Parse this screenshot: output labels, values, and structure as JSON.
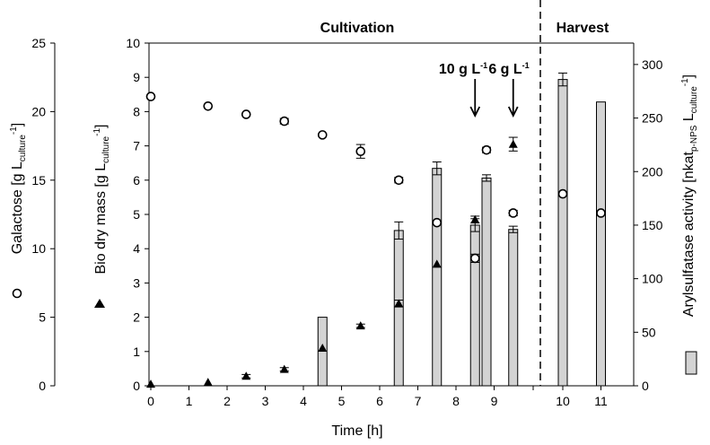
{
  "chart_data": {
    "type": "bar",
    "section_labels": {
      "cultivation": "Cultivation",
      "harvest": "Harvest"
    },
    "xlabel": "Time [h]",
    "x_ticks": [
      "0",
      "1",
      "2",
      "3",
      "4",
      "5",
      "6",
      "7",
      "8",
      "9",
      "10",
      "11"
    ],
    "xlim": [
      0,
      12.3
    ],
    "axes": {
      "galactose": {
        "label_main": "Galactose [g L",
        "label_sub": "culture",
        "label_sup": "-1",
        "label_close": "]",
        "ylim": [
          0,
          25
        ],
        "ticks": [
          0,
          5,
          10,
          15,
          20,
          25
        ]
      },
      "biomass": {
        "label_main": "Bio dry mass [g L",
        "label_sub": "culture",
        "label_sup": "-1",
        "label_close": "]",
        "ylim": [
          0,
          10
        ],
        "ticks": [
          0,
          1,
          2,
          3,
          4,
          5,
          6,
          7,
          8,
          9,
          10
        ]
      },
      "arylsulfatase": {
        "label_main": "Arylsulfatase activity [nkat",
        "label_sub": "p-NPS",
        "label_mid": " L",
        "label_sub2": "culture",
        "label_sup": "-1",
        "label_close": "]",
        "ylim": [
          0,
          320
        ],
        "ticks": [
          0,
          50,
          100,
          150,
          200,
          250,
          300
        ]
      }
    },
    "series": [
      {
        "name": "Galactose",
        "axis": "galactose",
        "marker": "open-circle",
        "points": [
          {
            "x": 0,
            "y": 21.1,
            "err": 0
          },
          {
            "x": 1.5,
            "y": 20.4,
            "err": 0
          },
          {
            "x": 2.5,
            "y": 19.8,
            "err": 0
          },
          {
            "x": 3.5,
            "y": 19.3,
            "err": 0.2
          },
          {
            "x": 4.5,
            "y": 18.3,
            "err": 0
          },
          {
            "x": 5.5,
            "y": 17.1,
            "err": 0.5
          },
          {
            "x": 6.5,
            "y": 15.0,
            "err": 0.2
          },
          {
            "x": 7.5,
            "y": 11.9,
            "err": 0
          },
          {
            "x": 8.5,
            "y": 9.3,
            "err": 0.3
          },
          {
            "x": 8.8,
            "y": 17.2,
            "err": 0.2
          },
          {
            "x": 9.5,
            "y": 12.6,
            "err": 0.2
          },
          {
            "x": 10.8,
            "y": 14.0,
            "err": 0
          },
          {
            "x": 11.8,
            "y": 12.6,
            "err": 0
          }
        ]
      },
      {
        "name": "Bio dry mass",
        "axis": "biomass",
        "marker": "filled-triangle",
        "points": [
          {
            "x": 0,
            "y": 0.05,
            "err": 0
          },
          {
            "x": 1.5,
            "y": 0.1,
            "err": 0
          },
          {
            "x": 2.5,
            "y": 0.28,
            "err": 0.05
          },
          {
            "x": 3.5,
            "y": 0.48,
            "err": 0.05
          },
          {
            "x": 4.5,
            "y": 1.1,
            "err": 0
          },
          {
            "x": 5.5,
            "y": 1.75,
            "err": 0.05
          },
          {
            "x": 6.5,
            "y": 2.4,
            "err": 0.1
          },
          {
            "x": 7.5,
            "y": 3.55,
            "err": 0
          },
          {
            "x": 8.5,
            "y": 4.85,
            "err": 0.1
          },
          {
            "x": 9.5,
            "y": 7.05,
            "err": 0.2
          }
        ]
      },
      {
        "name": "Arylsulfatase activity",
        "axis": "arylsulfatase",
        "marker": "grey-bar",
        "bars": [
          {
            "x": 4.5,
            "y": 64,
            "err": 0
          },
          {
            "x": 6.5,
            "y": 145,
            "err": 8
          },
          {
            "x": 7.5,
            "y": 203,
            "err": 6
          },
          {
            "x": 8.5,
            "y": 150,
            "err": 6
          },
          {
            "x": 8.8,
            "y": 194,
            "err": 3
          },
          {
            "x": 9.5,
            "y": 146,
            "err": 3
          },
          {
            "x": 10.8,
            "y": 286,
            "err": 6
          },
          {
            "x": 11.8,
            "y": 265,
            "err": 0
          }
        ]
      }
    ],
    "annotations": [
      {
        "label_main": "10 g L",
        "label_sup": "-1",
        "x": 8.5
      },
      {
        "label_main": "6 g L",
        "label_sup": "-1",
        "x": 9.5
      }
    ]
  }
}
